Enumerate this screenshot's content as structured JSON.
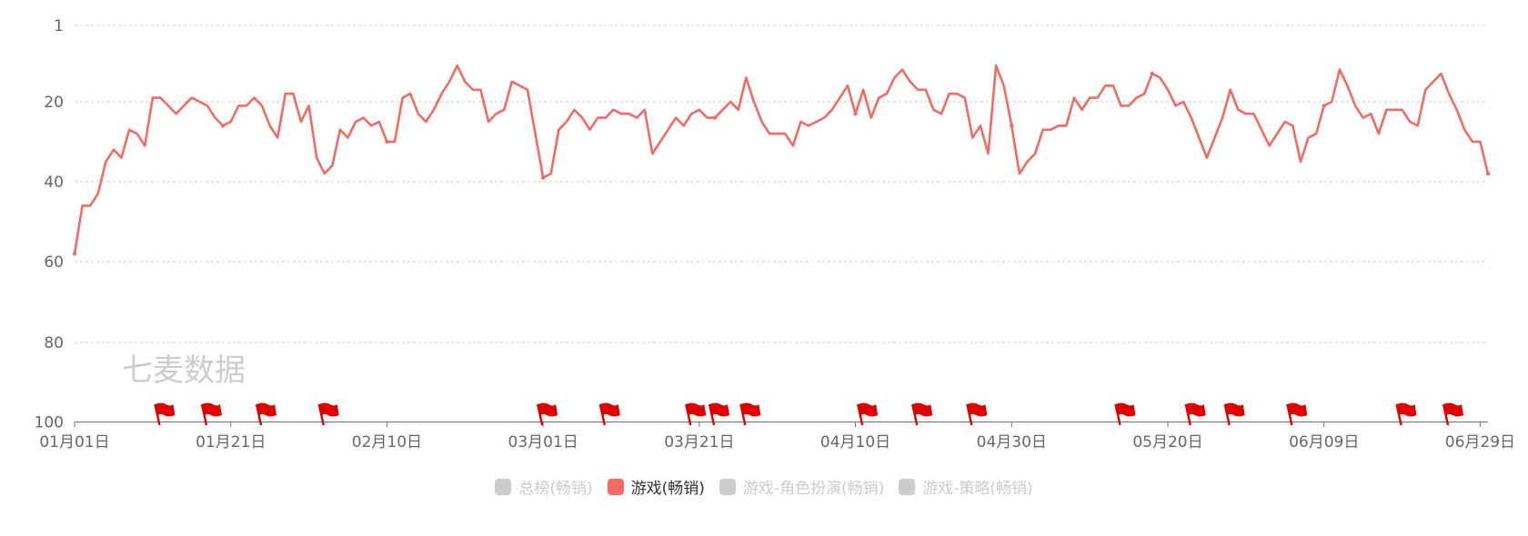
{
  "chart_data": {
    "type": "line",
    "title": "",
    "xlabel": "",
    "ylabel": "",
    "y_inverted": true,
    "ylim": [
      1,
      100
    ],
    "y_ticks": [
      1,
      20,
      40,
      60,
      80,
      100
    ],
    "x_range": [
      "01月01日",
      "06月30日"
    ],
    "x_tick_labels": [
      "01月01日",
      "01月21日",
      "02月10日",
      "03月01日",
      "03月21日",
      "04月10日",
      "04月30日",
      "05月20日",
      "06月09日",
      "06月29日"
    ],
    "grid": true,
    "legend_position": "bottom",
    "watermark": "七麦数据",
    "line_color": "#f26b63",
    "flag_color": "#e00000",
    "series": [
      {
        "name": "游戏(畅销)",
        "x": [
          "01月01日",
          "01月02日",
          "01月03日",
          "01月04日",
          "01月05日",
          "01月06日",
          "01月07日",
          "01月08日",
          "01月09日",
          "01月10日",
          "01月11日",
          "01月12日",
          "01月13日",
          "01月14日",
          "01月15日",
          "01月16日",
          "01月17日",
          "01月18日",
          "01月19日",
          "01月20日",
          "01月21日",
          "01月22日",
          "01月23日",
          "01月24日",
          "01月25日",
          "01月26日",
          "01月27日",
          "01月28日",
          "01月29日",
          "01月30日",
          "01月31日",
          "02月01日",
          "02月02日",
          "02月03日",
          "02月04日",
          "02月05日",
          "02月06日",
          "02月07日",
          "02月08日",
          "02月09日",
          "02月10日",
          "02月11日",
          "02月12日",
          "02月13日",
          "02月14日",
          "02月15日",
          "02月16日",
          "02月17日",
          "02月18日",
          "02月19日",
          "02月20日",
          "02月21日",
          "02月22日",
          "02月23日",
          "02月24日",
          "02月25日",
          "02月26日",
          "02月27日",
          "02月28日",
          "02月29日",
          "03月01日",
          "03月02日",
          "03月03日",
          "03月04日",
          "03月05日",
          "03月06日",
          "03月07日",
          "03月08日",
          "03月09日",
          "03月10日",
          "03月11日",
          "03月12日",
          "03月13日",
          "03月14日",
          "03月15日",
          "03月16日",
          "03月17日",
          "03月18日",
          "03月19日",
          "03月20日",
          "03月21日",
          "03月22日",
          "03月23日",
          "03月24日",
          "03月25日",
          "03月26日",
          "03月27日",
          "03月28日",
          "03月29日",
          "03月30日",
          "03月31日",
          "04月01日",
          "04月02日",
          "04月03日",
          "04月04日",
          "04月05日",
          "04月06日",
          "04月07日",
          "04月08日",
          "04月09日",
          "04月10日",
          "04月11日",
          "04月12日",
          "04月13日",
          "04月14日",
          "04月15日",
          "04月16日",
          "04月17日",
          "04月18日",
          "04月19日",
          "04月20日",
          "04月21日",
          "04月22日",
          "04月23日",
          "04月24日",
          "04月25日",
          "04月26日",
          "04月27日",
          "04月28日",
          "04月29日",
          "04月30日",
          "05月01日",
          "05月02日",
          "05月03日",
          "05月04日",
          "05月05日",
          "05月06日",
          "05月07日",
          "05月08日",
          "05月09日",
          "05月10日",
          "05月11日",
          "05月12日",
          "05月13日",
          "05月14日",
          "05月15日",
          "05月16日",
          "05月17日",
          "05月18日",
          "05月19日",
          "05月20日",
          "05月21日",
          "05月22日",
          "05月23日",
          "05月24日",
          "05月25日",
          "05月26日",
          "05月27日",
          "05月28日",
          "05月29日",
          "05月30日",
          "05月31日",
          "06月01日",
          "06月02日",
          "06月03日",
          "06月04日",
          "06月05日",
          "06月06日",
          "06月07日",
          "06月08日",
          "06月09日",
          "06月10日",
          "06月11日",
          "06月12日",
          "06月13日",
          "06月14日",
          "06月15日",
          "06月16日",
          "06月17日",
          "06月18日",
          "06月19日",
          "06月20日",
          "06月21日",
          "06月22日",
          "06月23日",
          "06月24日",
          "06月25日",
          "06月26日",
          "06月27日",
          "06月28日",
          "06月29日",
          "06月30日"
        ],
        "values": [
          58,
          46,
          46,
          43,
          35,
          32,
          34,
          27,
          28,
          31,
          19,
          19,
          21,
          23,
          21,
          19,
          20,
          21,
          24,
          26,
          25,
          21,
          21,
          19,
          21,
          26,
          29,
          18,
          18,
          25,
          21,
          34,
          38,
          36,
          27,
          29,
          25,
          24,
          26,
          25,
          30,
          30,
          19,
          18,
          23,
          25,
          22,
          18,
          15,
          11,
          15,
          17,
          17,
          25,
          23,
          22,
          15,
          16,
          17,
          28,
          39,
          38,
          27,
          25,
          22,
          24,
          27,
          24,
          24,
          22,
          23,
          23,
          24,
          22,
          33,
          30,
          27,
          24,
          26,
          23,
          22,
          24,
          24,
          22,
          20,
          22,
          14,
          20,
          25,
          28,
          28,
          28,
          31,
          25,
          26,
          25,
          24,
          22,
          19,
          16,
          23,
          17,
          24,
          19,
          18,
          14,
          12,
          15,
          17,
          17,
          22,
          23,
          18,
          18,
          19,
          29,
          26,
          33,
          11,
          16,
          26,
          38,
          35,
          33,
          27,
          27,
          26,
          26,
          19,
          22,
          19,
          19,
          16,
          16,
          21,
          21,
          19,
          18,
          13,
          14,
          17,
          21,
          20,
          24,
          29,
          34,
          29,
          24,
          17,
          22,
          23,
          23,
          27,
          31,
          28,
          25,
          26,
          35,
          29,
          28,
          21,
          20,
          12,
          16,
          21,
          24,
          23,
          28,
          22,
          22,
          22,
          25,
          26,
          17,
          15,
          13,
          18,
          22,
          27,
          30,
          30,
          38
        ]
      }
    ],
    "event_flags": [
      "01月12日",
      "01月18日",
      "01月25日",
      "02月02日",
      "03月01日",
      "03月09日",
      "03月20日",
      "03月23日",
      "03月27日",
      "04月11日",
      "04月18日",
      "04月25日",
      "05月14日",
      "05月23日",
      "05月28日",
      "06月05日",
      "06月19日",
      "06月25日"
    ]
  },
  "legend": [
    {
      "label": "总榜(畅销)",
      "active": false
    },
    {
      "label": "游戏(畅销)",
      "active": true
    },
    {
      "label": "游戏-角色扮演(畅销)",
      "active": false
    },
    {
      "label": "游戏-策略(畅销)",
      "active": false
    }
  ]
}
